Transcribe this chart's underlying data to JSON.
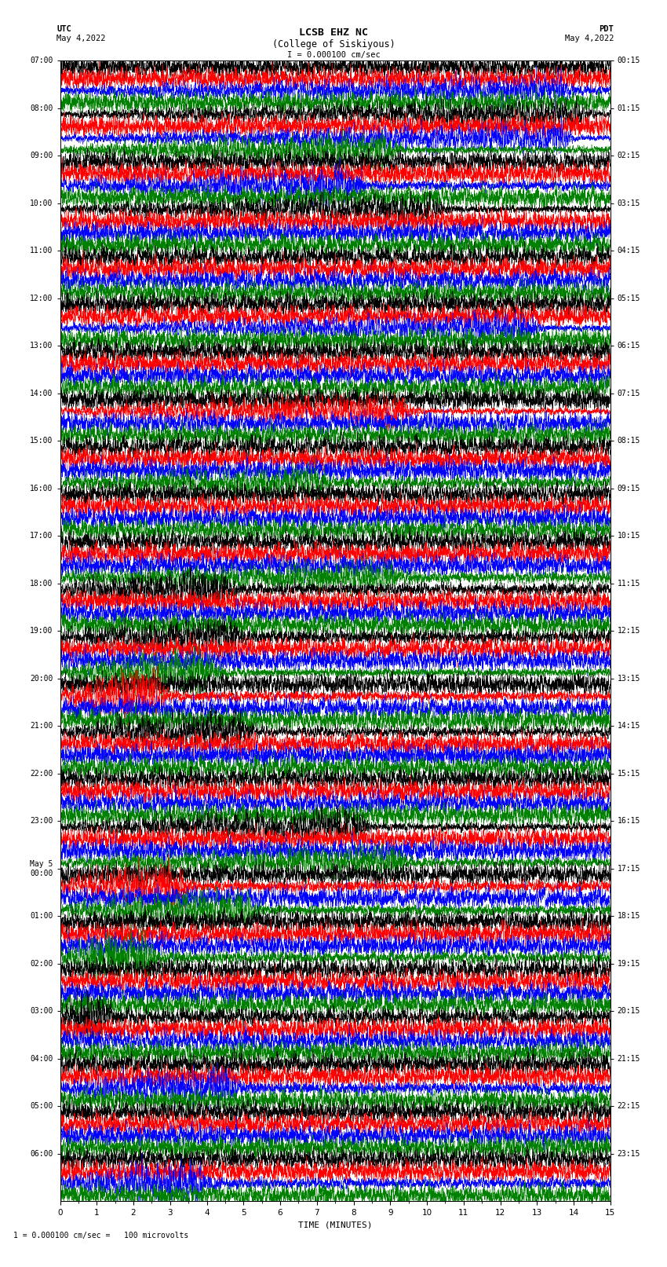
{
  "title_line1": "LCSB EHZ NC",
  "title_line2": "(College of Siskiyous)",
  "scale_label": "I = 0.000100 cm/sec",
  "bottom_label": "1 = 0.000100 cm/sec =   100 microvolts",
  "xlabel": "TIME (MINUTES)",
  "utc_times": [
    "07:00",
    "08:00",
    "09:00",
    "10:00",
    "11:00",
    "12:00",
    "13:00",
    "14:00",
    "15:00",
    "16:00",
    "17:00",
    "18:00",
    "19:00",
    "20:00",
    "21:00",
    "22:00",
    "23:00",
    "May 5\n00:00",
    "01:00",
    "02:00",
    "03:00",
    "04:00",
    "05:00",
    "06:00"
  ],
  "pdt_times": [
    "00:15",
    "01:15",
    "02:15",
    "03:15",
    "04:15",
    "05:15",
    "06:15",
    "07:15",
    "08:15",
    "09:15",
    "10:15",
    "11:15",
    "12:15",
    "13:15",
    "14:15",
    "15:15",
    "16:15",
    "17:15",
    "18:15",
    "19:15",
    "20:15",
    "21:15",
    "22:15",
    "23:15"
  ],
  "colors_cycle": [
    "black",
    "red",
    "blue",
    "green"
  ],
  "n_hours": 24,
  "traces_per_hour": 4,
  "time_minutes": 15,
  "xlim": [
    0,
    15
  ],
  "background_color": "white",
  "fig_width": 8.5,
  "fig_height": 16.13,
  "dpi": 100
}
